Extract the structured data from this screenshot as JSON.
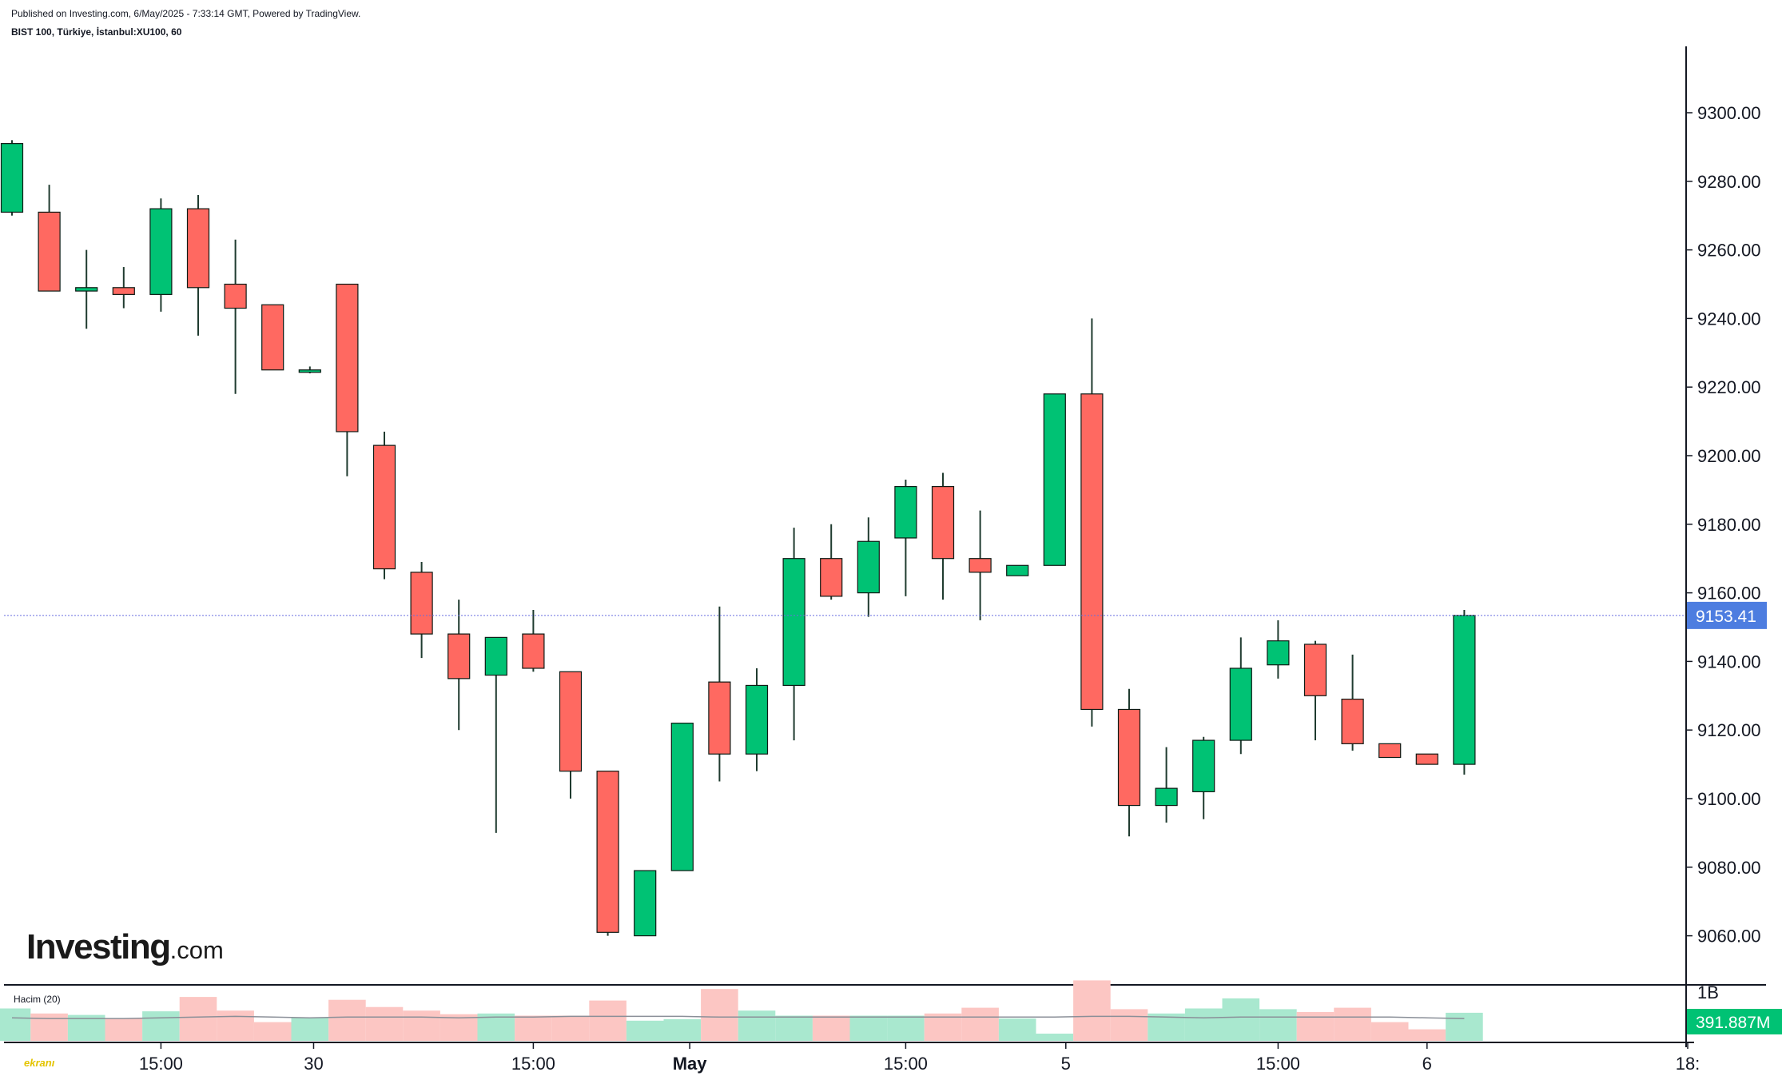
{
  "header": {
    "published": "Published on Investing.com, 6/May/2025 - 7:33:14 GMT, Powered by TradingView.",
    "symbol": "BIST 100, Türkiye, İstanbul:XU100, 60"
  },
  "brand": {
    "name": "Investing",
    "suffix": ".com"
  },
  "watermark": "ekranı",
  "colors": {
    "up": "#00c274",
    "down": "#ff6961",
    "up_volume": "#a9e8cf",
    "down_volume": "#fcc6c3",
    "price_line": "#6a6fe0",
    "price_badge": "#4d7de0"
  },
  "price_axis": {
    "ticks": [
      "9300.00",
      "9280.00",
      "9260.00",
      "9240.00",
      "9220.00",
      "9200.00",
      "9180.00",
      "9160.00",
      "9140.00",
      "9120.00",
      "9100.00",
      "9080.00",
      "9060.00"
    ]
  },
  "time_axis": {
    "ticks": [
      {
        "label": "15:00",
        "bold": false
      },
      {
        "label": "30",
        "bold": false
      },
      {
        "label": "15:00",
        "bold": false
      },
      {
        "label": "May",
        "bold": true
      },
      {
        "label": "15:00",
        "bold": false
      },
      {
        "label": "5",
        "bold": false
      },
      {
        "label": "15:00",
        "bold": false
      },
      {
        "label": "6",
        "bold": false
      },
      {
        "label": "18:",
        "bold": false
      }
    ]
  },
  "last_price": {
    "label": "9153.41",
    "value": 9153.41
  },
  "volume_pane": {
    "label": "Hacim (20)",
    "axis_label": "1B",
    "last_volume_label": "391.887M"
  },
  "chart_data": {
    "type": "candlestick",
    "title": "BIST 100, Türkiye, İstanbul:XU100, 60",
    "ylim": [
      9050,
      9315
    ],
    "candles": [
      {
        "o": 9271,
        "h": 9292,
        "l": 9270,
        "c": 9291
      },
      {
        "o": 9271,
        "h": 9279,
        "l": 9248,
        "c": 9248
      },
      {
        "o": 9248,
        "h": 9260,
        "l": 9237,
        "c": 9249
      },
      {
        "o": 9249,
        "h": 9255,
        "l": 9243,
        "c": 9247
      },
      {
        "o": 9247,
        "h": 9275,
        "l": 9242,
        "c": 9272
      },
      {
        "o": 9272,
        "h": 9276,
        "l": 9235,
        "c": 9249
      },
      {
        "o": 9250,
        "h": 9263,
        "l": 9218,
        "c": 9243
      },
      {
        "o": 9244,
        "h": 9244,
        "l": 9225,
        "c": 9225
      },
      {
        "o": 9225,
        "h": 9226,
        "l": 9224,
        "c": 9225
      },
      {
        "o": 9250,
        "h": 9250,
        "l": 9194,
        "c": 9207
      },
      {
        "o": 9203,
        "h": 9207,
        "l": 9164,
        "c": 9167
      },
      {
        "o": 9166,
        "h": 9169,
        "l": 9141,
        "c": 9148
      },
      {
        "o": 9148,
        "h": 9158,
        "l": 9120,
        "c": 9135
      },
      {
        "o": 9136,
        "h": 9147,
        "l": 9090,
        "c": 9147
      },
      {
        "o": 9148,
        "h": 9155,
        "l": 9137,
        "c": 9138
      },
      {
        "o": 9137,
        "h": 9137,
        "l": 9100,
        "c": 9108
      },
      {
        "o": 9108,
        "h": 9108,
        "l": 9060,
        "c": 9061
      },
      {
        "o": 9060,
        "h": 9079,
        "l": 9060,
        "c": 9079
      },
      {
        "o": 9079,
        "h": 9122,
        "l": 9079,
        "c": 9122
      },
      {
        "o": 9134,
        "h": 9156,
        "l": 9105,
        "c": 9113
      },
      {
        "o": 9113,
        "h": 9138,
        "l": 9108,
        "c": 9133
      },
      {
        "o": 9133,
        "h": 9179,
        "l": 9117,
        "c": 9170
      },
      {
        "o": 9170,
        "h": 9180,
        "l": 9158,
        "c": 9159
      },
      {
        "o": 9160,
        "h": 9182,
        "l": 9153,
        "c": 9175
      },
      {
        "o": 9176,
        "h": 9193,
        "l": 9159,
        "c": 9191
      },
      {
        "o": 9191,
        "h": 9195,
        "l": 9158,
        "c": 9170
      },
      {
        "o": 9170,
        "h": 9184,
        "l": 9152,
        "c": 9166
      },
      {
        "o": 9165,
        "h": 9168,
        "l": 9165,
        "c": 9168
      },
      {
        "o": 9168,
        "h": 9218,
        "l": 9168,
        "c": 9218
      },
      {
        "o": 9218,
        "h": 9240,
        "l": 9121,
        "c": 9126
      },
      {
        "o": 9126,
        "h": 9132,
        "l": 9089,
        "c": 9098
      },
      {
        "o": 9098,
        "h": 9115,
        "l": 9093,
        "c": 9103
      },
      {
        "o": 9102,
        "h": 9118,
        "l": 9094,
        "c": 9117
      },
      {
        "o": 9117,
        "h": 9147,
        "l": 9113,
        "c": 9138
      },
      {
        "o": 9139,
        "h": 9152,
        "l": 9135,
        "c": 9146
      },
      {
        "o": 9145,
        "h": 9146,
        "l": 9117,
        "c": 9130
      },
      {
        "o": 9129,
        "h": 9142,
        "l": 9114,
        "c": 9116
      },
      {
        "o": 9116,
        "h": 9116,
        "l": 9112,
        "c": 9112
      },
      {
        "o": 9113,
        "h": 9113,
        "l": 9110,
        "c": 9110
      },
      {
        "o": 9110,
        "h": 9155,
        "l": 9107,
        "c": 9153.41
      }
    ],
    "volume_ma": [
      0.32,
      0.31,
      0.31,
      0.31,
      0.32,
      0.33,
      0.34,
      0.33,
      0.32,
      0.33,
      0.33,
      0.33,
      0.32,
      0.33,
      0.33,
      0.34,
      0.34,
      0.34,
      0.34,
      0.33,
      0.33,
      0.33,
      0.33,
      0.33,
      0.33,
      0.33,
      0.33,
      0.33,
      0.33,
      0.34,
      0.34,
      0.33,
      0.32,
      0.33,
      0.33,
      0.33,
      0.33,
      0.33,
      0.32,
      0.31
    ],
    "volume": [
      0.45,
      0.38,
      0.36,
      0.31,
      0.41,
      0.61,
      0.42,
      0.26,
      0.32,
      0.57,
      0.47,
      0.42,
      0.37,
      0.38,
      0.35,
      0.35,
      0.56,
      0.28,
      0.3,
      0.72,
      0.42,
      0.35,
      0.35,
      0.35,
      0.35,
      0.38,
      0.46,
      0.31,
      0.1,
      0.84,
      0.44,
      0.38,
      0.45,
      0.59,
      0.44,
      0.4,
      0.46,
      0.26,
      0.16,
      0.39
    ]
  }
}
